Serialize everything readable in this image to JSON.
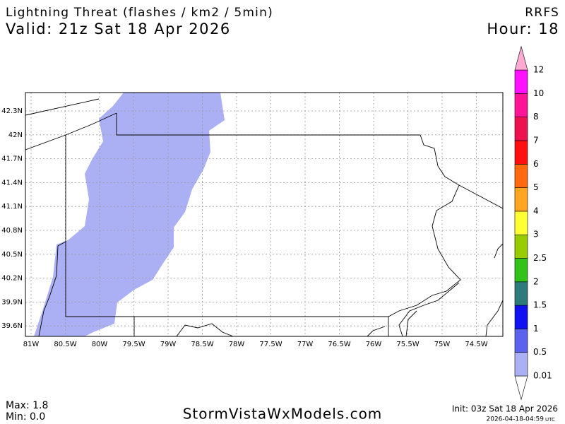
{
  "header": {
    "title": "Lightning Threat (flashes / km2 / 5min)",
    "model": "RRFS",
    "valid": "Valid: 21z Sat 18 Apr 2026",
    "hour": "Hour: 18"
  },
  "map": {
    "lat_labels": [
      "42.3N",
      "42N",
      "41.7N",
      "41.4N",
      "41.1N",
      "40.8N",
      "40.5N",
      "40.2N",
      "39.9N",
      "39.6N"
    ],
    "lon_labels": [
      "81W",
      "80.5W",
      "80W",
      "79.5W",
      "79W",
      "78.5W",
      "78W",
      "77.5W",
      "77W",
      "76.5W",
      "76W",
      "75.5W",
      "75W",
      "74.5W"
    ],
    "fill_color": "#abb0f5"
  },
  "colorbar": {
    "levels": [
      0.01,
      0.5,
      1,
      1.5,
      2,
      2.5,
      3,
      4,
      5,
      6,
      7,
      8,
      10,
      12
    ],
    "colors": [
      "#ffffff",
      "#abb0f5",
      "#5b63ee",
      "#1010f0",
      "#2e7b7b",
      "#33c21a",
      "#99cc00",
      "#ffff33",
      "#ffa522",
      "#ff6a10",
      "#ff1010",
      "#ee1150",
      "#ff1497",
      "#ff10ff",
      "#ffaad0"
    ]
  },
  "footer": {
    "max": "Max: 1.8",
    "min": "Min: 0.0",
    "site": "StormVistaWxModels.com",
    "init": "Init: 03z Sat 18 Apr 2026",
    "stamp": "2026-04-18-04:59",
    "tz": "UTC"
  }
}
